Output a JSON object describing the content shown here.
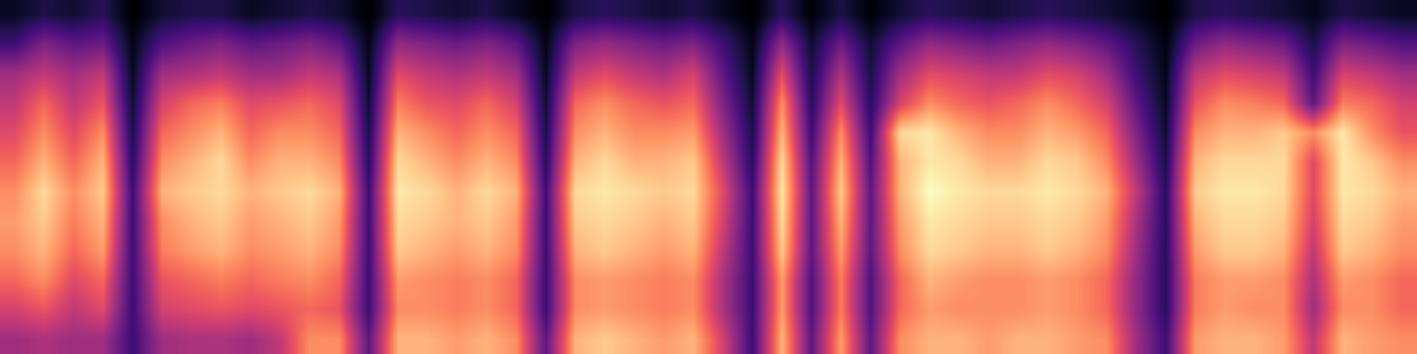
{
  "chart_data": {
    "type": "heatmap",
    "color": "magma",
    "tick_labels": false,
    "cells": [
      [
        0.06,
        0.1,
        0.08,
        0.12,
        0.02,
        0.08,
        0.1,
        0.1,
        0.06,
        0.08,
        0.1,
        0.08,
        0.02,
        0.12,
        0.1,
        0.08,
        0.1,
        0.06,
        0.02,
        0.1,
        0.12,
        0.1,
        0.08,
        0.1,
        0.06,
        0.02,
        0.12,
        0.03,
        0.1,
        0.03,
        0.08,
        0.12,
        0.1,
        0.08,
        0.1,
        0.12,
        0.1,
        0.08,
        0.05,
        0.02,
        0.1,
        0.12,
        0.1,
        0.08,
        0.05,
        0.1,
        0.08,
        0.06
      ],
      [
        0.15,
        0.25,
        0.2,
        0.22,
        0.05,
        0.18,
        0.22,
        0.25,
        0.2,
        0.22,
        0.25,
        0.2,
        0.05,
        0.28,
        0.25,
        0.22,
        0.25,
        0.2,
        0.05,
        0.25,
        0.28,
        0.25,
        0.22,
        0.25,
        0.15,
        0.05,
        0.28,
        0.08,
        0.22,
        0.08,
        0.2,
        0.28,
        0.25,
        0.22,
        0.25,
        0.28,
        0.25,
        0.2,
        0.12,
        0.04,
        0.22,
        0.28,
        0.25,
        0.22,
        0.1,
        0.25,
        0.22,
        0.18
      ],
      [
        0.3,
        0.35,
        0.3,
        0.35,
        0.06,
        0.3,
        0.32,
        0.35,
        0.3,
        0.3,
        0.35,
        0.32,
        0.06,
        0.4,
        0.35,
        0.32,
        0.35,
        0.3,
        0.06,
        0.35,
        0.4,
        0.35,
        0.32,
        0.38,
        0.2,
        0.06,
        0.4,
        0.1,
        0.32,
        0.1,
        0.3,
        0.4,
        0.38,
        0.35,
        0.35,
        0.4,
        0.38,
        0.3,
        0.15,
        0.05,
        0.35,
        0.4,
        0.38,
        0.35,
        0.15,
        0.38,
        0.35,
        0.3
      ],
      [
        0.35,
        0.45,
        0.35,
        0.42,
        0.08,
        0.38,
        0.45,
        0.48,
        0.4,
        0.42,
        0.45,
        0.4,
        0.08,
        0.48,
        0.42,
        0.4,
        0.45,
        0.38,
        0.08,
        0.45,
        0.5,
        0.45,
        0.42,
        0.45,
        0.25,
        0.08,
        0.5,
        0.12,
        0.4,
        0.12,
        0.38,
        0.5,
        0.45,
        0.42,
        0.45,
        0.5,
        0.45,
        0.38,
        0.2,
        0.06,
        0.42,
        0.5,
        0.48,
        0.45,
        0.2,
        0.48,
        0.45,
        0.38
      ],
      [
        0.4,
        0.5,
        0.4,
        0.5,
        0.1,
        0.45,
        0.5,
        0.55,
        0.45,
        0.5,
        0.5,
        0.45,
        0.1,
        0.55,
        0.5,
        0.45,
        0.5,
        0.45,
        0.1,
        0.5,
        0.55,
        0.5,
        0.5,
        0.52,
        0.3,
        0.1,
        0.55,
        0.15,
        0.5,
        0.15,
        0.6,
        0.62,
        0.55,
        0.5,
        0.5,
        0.55,
        0.52,
        0.45,
        0.25,
        0.08,
        0.5,
        0.55,
        0.55,
        0.58,
        0.5,
        0.62,
        0.5,
        0.42
      ],
      [
        0.45,
        0.55,
        0.45,
        0.55,
        0.12,
        0.5,
        0.55,
        0.6,
        0.5,
        0.55,
        0.55,
        0.5,
        0.12,
        0.6,
        0.55,
        0.5,
        0.55,
        0.5,
        0.12,
        0.55,
        0.6,
        0.55,
        0.55,
        0.58,
        0.35,
        0.12,
        0.6,
        0.18,
        0.55,
        0.18,
        0.55,
        0.62,
        0.6,
        0.55,
        0.55,
        0.6,
        0.58,
        0.5,
        0.3,
        0.1,
        0.55,
        0.6,
        0.6,
        0.6,
        0.4,
        0.62,
        0.58,
        0.5
      ],
      [
        0.5,
        0.6,
        0.5,
        0.58,
        0.15,
        0.55,
        0.58,
        0.6,
        0.55,
        0.58,
        0.6,
        0.55,
        0.15,
        0.62,
        0.6,
        0.55,
        0.6,
        0.55,
        0.15,
        0.6,
        0.62,
        0.6,
        0.58,
        0.6,
        0.4,
        0.15,
        0.62,
        0.2,
        0.58,
        0.2,
        0.55,
        0.65,
        0.62,
        0.6,
        0.6,
        0.62,
        0.6,
        0.55,
        0.35,
        0.12,
        0.58,
        0.62,
        0.62,
        0.6,
        0.4,
        0.62,
        0.6,
        0.55
      ],
      [
        0.52,
        0.58,
        0.48,
        0.55,
        0.15,
        0.5,
        0.55,
        0.58,
        0.52,
        0.55,
        0.58,
        0.52,
        0.15,
        0.6,
        0.58,
        0.55,
        0.58,
        0.52,
        0.15,
        0.58,
        0.6,
        0.58,
        0.55,
        0.58,
        0.38,
        0.15,
        0.6,
        0.2,
        0.55,
        0.2,
        0.52,
        0.62,
        0.6,
        0.58,
        0.58,
        0.6,
        0.58,
        0.52,
        0.32,
        0.12,
        0.55,
        0.6,
        0.6,
        0.58,
        0.38,
        0.6,
        0.58,
        0.52
      ],
      [
        0.5,
        0.55,
        0.45,
        0.52,
        0.15,
        0.48,
        0.52,
        0.55,
        0.5,
        0.52,
        0.55,
        0.5,
        0.15,
        0.58,
        0.55,
        0.52,
        0.55,
        0.5,
        0.15,
        0.55,
        0.58,
        0.55,
        0.52,
        0.55,
        0.35,
        0.15,
        0.58,
        0.2,
        0.52,
        0.2,
        0.5,
        0.6,
        0.58,
        0.55,
        0.55,
        0.58,
        0.55,
        0.5,
        0.3,
        0.12,
        0.52,
        0.58,
        0.58,
        0.55,
        0.35,
        0.58,
        0.55,
        0.5
      ],
      [
        0.45,
        0.5,
        0.4,
        0.45,
        0.15,
        0.42,
        0.45,
        0.48,
        0.45,
        0.48,
        0.5,
        0.45,
        0.15,
        0.52,
        0.5,
        0.48,
        0.5,
        0.45,
        0.15,
        0.5,
        0.52,
        0.5,
        0.48,
        0.5,
        0.32,
        0.15,
        0.52,
        0.18,
        0.48,
        0.18,
        0.45,
        0.55,
        0.52,
        0.5,
        0.5,
        0.52,
        0.5,
        0.45,
        0.28,
        0.12,
        0.48,
        0.52,
        0.52,
        0.5,
        0.32,
        0.52,
        0.5,
        0.45
      ],
      [
        0.38,
        0.42,
        0.35,
        0.4,
        0.15,
        0.38,
        0.4,
        0.42,
        0.4,
        0.42,
        0.45,
        0.42,
        0.15,
        0.5,
        0.5,
        0.48,
        0.5,
        0.45,
        0.15,
        0.5,
        0.52,
        0.5,
        0.48,
        0.5,
        0.32,
        0.15,
        0.52,
        0.18,
        0.48,
        0.18,
        0.45,
        0.52,
        0.5,
        0.5,
        0.5,
        0.52,
        0.5,
        0.45,
        0.28,
        0.12,
        0.48,
        0.52,
        0.5,
        0.5,
        0.3,
        0.5,
        0.5,
        0.45
      ],
      [
        0.3,
        0.32,
        0.3,
        0.3,
        0.15,
        0.3,
        0.32,
        0.32,
        0.3,
        0.35,
        0.5,
        0.5,
        0.2,
        0.55,
        0.55,
        0.52,
        0.55,
        0.5,
        0.2,
        0.55,
        0.58,
        0.55,
        0.52,
        0.55,
        0.38,
        0.15,
        0.55,
        0.2,
        0.52,
        0.2,
        0.5,
        0.55,
        0.55,
        0.52,
        0.55,
        0.55,
        0.52,
        0.5,
        0.3,
        0.15,
        0.52,
        0.55,
        0.55,
        0.52,
        0.35,
        0.55,
        0.52,
        0.5
      ]
    ]
  }
}
